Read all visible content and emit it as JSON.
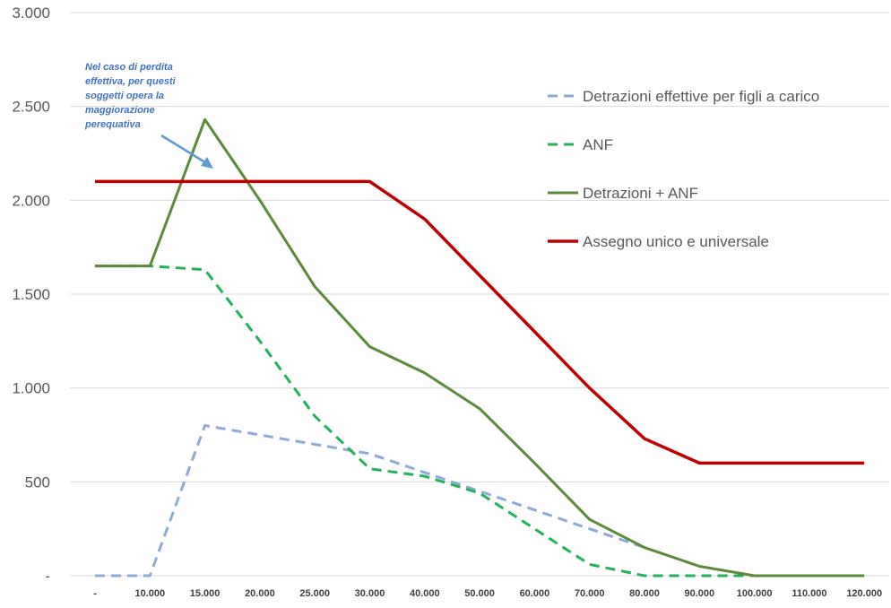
{
  "chart_data": {
    "type": "line",
    "title": "",
    "xlabel": "",
    "ylabel": "",
    "x": [
      "-",
      "10.000",
      "15.000",
      "20.000",
      "25.000",
      "30.000",
      "40.000",
      "50.000",
      "60.000",
      "70.000",
      "80.000",
      "90.000",
      "100.000",
      "110.000",
      "120.000"
    ],
    "y_ticks": [
      "-",
      "500",
      "1.000",
      "1.500",
      "2.000",
      "2.500",
      "3.000"
    ],
    "ylim": [
      0,
      3000
    ],
    "grid": "horizontal",
    "legend_position": "right",
    "series": [
      {
        "name": "Detrazioni effettive per figli a carico",
        "color": "#8eaadb",
        "style": "dashed",
        "values": [
          0,
          0,
          800,
          750,
          700,
          650,
          550,
          450,
          350,
          250,
          150,
          null,
          null,
          null,
          null
        ]
      },
      {
        "name": "ANF",
        "color": "#21b35a",
        "style": "dashed",
        "values": [
          1650,
          1650,
          1630,
          1250,
          850,
          570,
          530,
          440,
          250,
          60,
          0,
          0,
          0,
          null,
          null
        ]
      },
      {
        "name": "Detrazioni + ANF",
        "color": "#5b8a3a",
        "style": "solid",
        "values": [
          1650,
          1650,
          2430,
          2000,
          1540,
          1220,
          1080,
          890,
          600,
          300,
          150,
          50,
          0,
          0,
          0
        ]
      },
      {
        "name": "Assegno unico e universale",
        "color": "#c00000",
        "style": "solid",
        "values": [
          2100,
          2100,
          2100,
          2100,
          2100,
          2100,
          1900,
          1600,
          1300,
          1000,
          730,
          600,
          600,
          600,
          600
        ]
      }
    ],
    "annotations": [
      {
        "text_lines": [
          "Nel caso di perdita",
          "effettiva, per questi",
          "soggetti opera la",
          "maggiorazione",
          "perequativa"
        ],
        "color": "#4472c4"
      }
    ]
  }
}
